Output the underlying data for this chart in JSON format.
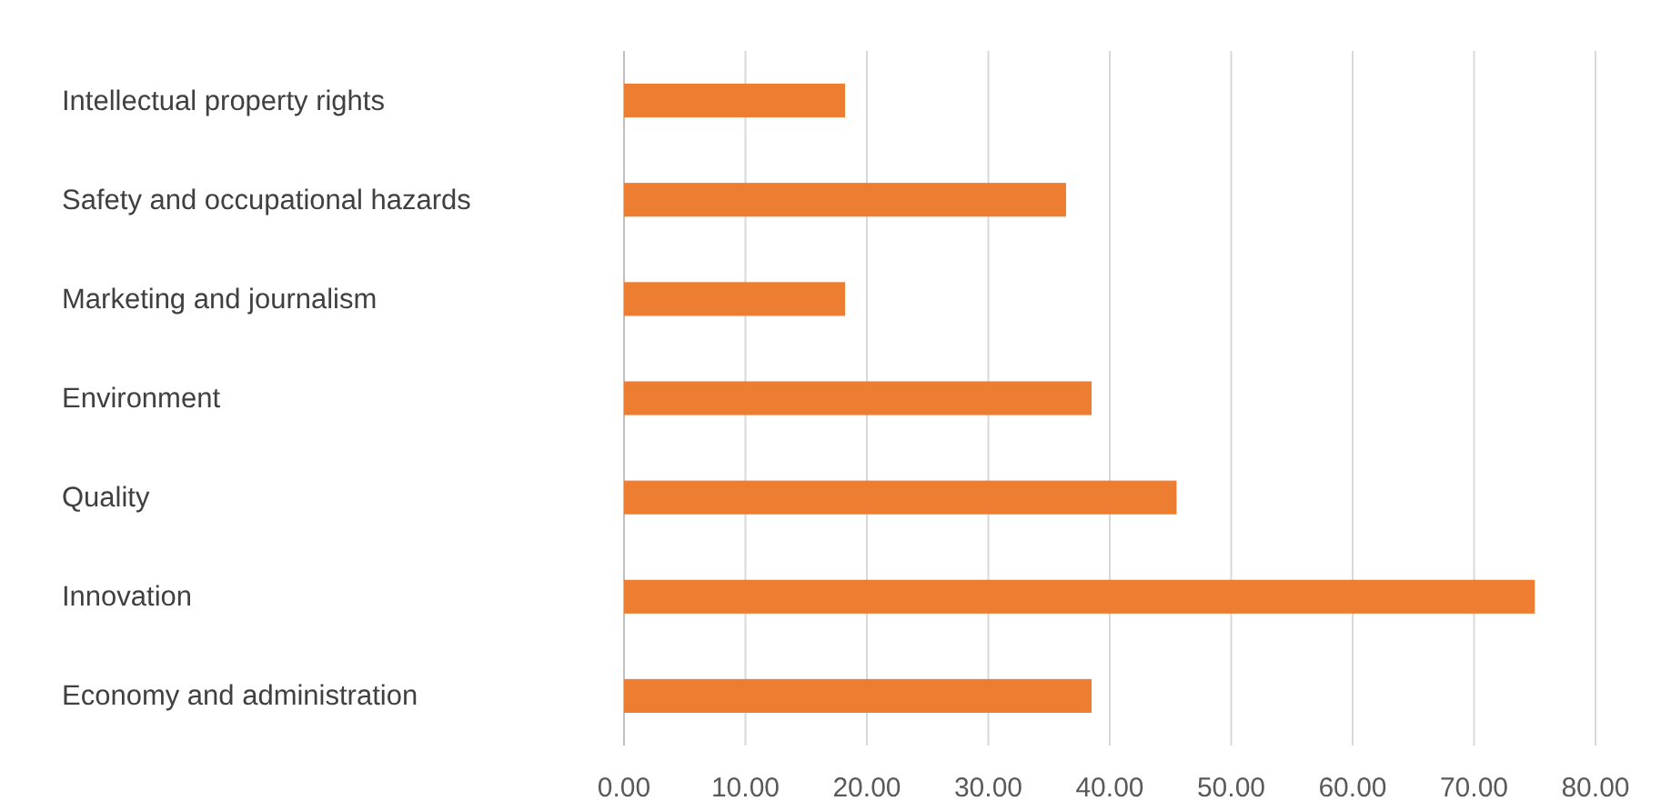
{
  "chart_data": {
    "type": "bar",
    "orientation": "horizontal",
    "categories": [
      "Intellectual property rights",
      "Safety and occupational hazards",
      "Marketing and journalism",
      "Environment",
      "Quality",
      "Innovation",
      "Economy and administration"
    ],
    "values": [
      18.2,
      36.4,
      18.2,
      38.5,
      45.5,
      75,
      38.5
    ],
    "color": "#ed7d31",
    "xlim": [
      0,
      80
    ],
    "xticks": [
      {
        "value": 0,
        "label": "0.00"
      },
      {
        "value": 10,
        "label": "10.00"
      },
      {
        "value": 20,
        "label": "20.00"
      },
      {
        "value": 30,
        "label": "30.00"
      },
      {
        "value": 40,
        "label": "40.00"
      },
      {
        "value": 50,
        "label": "50.00"
      },
      {
        "value": 60,
        "label": "60.00"
      },
      {
        "value": 70,
        "label": "70.00"
      },
      {
        "value": 80,
        "label": "80.00"
      }
    ],
    "grid": "x"
  }
}
